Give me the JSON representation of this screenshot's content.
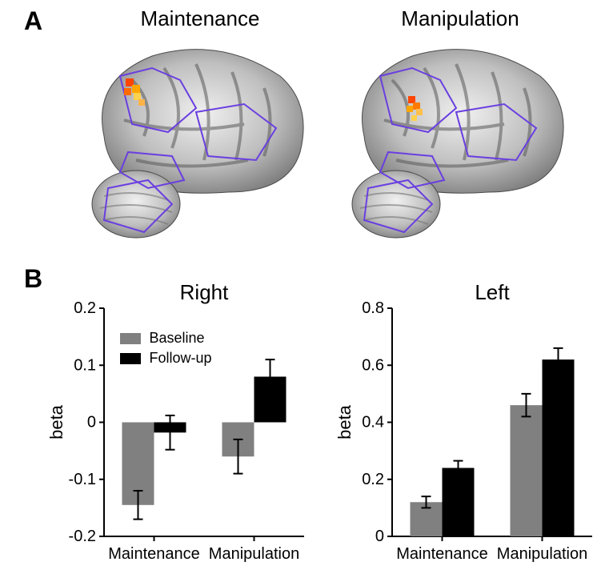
{
  "panelA": {
    "label": "A",
    "left_title": "Maintenance",
    "right_title": "Manipulation"
  },
  "panelB": {
    "label": "B",
    "charts": {
      "right": {
        "title": "Right",
        "ylabel": "beta",
        "ylim": [
          -0.2,
          0.2
        ],
        "yticks": [
          -0.2,
          -0.1,
          0,
          0.1,
          0.2
        ],
        "categories": [
          "Maintenance",
          "Manipulation"
        ],
        "series": [
          {
            "name": "Baseline",
            "color": "#808080",
            "values": [
              -0.145,
              -0.06
            ],
            "err": [
              0.025,
              0.03
            ]
          },
          {
            "name": "Follow-up",
            "color": "#000000",
            "values": [
              -0.018,
              0.08
            ],
            "err": [
              0.03,
              0.03
            ]
          }
        ],
        "bar_width": 0.32,
        "axis_color": "#000000",
        "background": "#ffffff"
      },
      "left": {
        "title": "Left",
        "ylabel": "beta",
        "ylim": [
          0,
          0.8
        ],
        "yticks": [
          0,
          0.2,
          0.4,
          0.6,
          0.8
        ],
        "categories": [
          "Maintenance",
          "Manipulation"
        ],
        "series": [
          {
            "name": "Baseline",
            "color": "#808080",
            "values": [
              0.12,
              0.46
            ],
            "err": [
              0.02,
              0.04
            ]
          },
          {
            "name": "Follow-up",
            "color": "#000000",
            "values": [
              0.24,
              0.62
            ],
            "err": [
              0.025,
              0.04
            ]
          }
        ],
        "bar_width": 0.32,
        "axis_color": "#000000",
        "background": "#ffffff"
      }
    },
    "legend": {
      "items": [
        {
          "label": "Baseline",
          "color": "#808080"
        },
        {
          "label": "Follow-up",
          "color": "#000000"
        }
      ]
    },
    "xlabel_fontsize": 20,
    "title_fontsize": 26
  },
  "brain_style": {
    "roi_outline_color": "#6a3fe0",
    "activation_colors": [
      "#ff4500",
      "#ffa500",
      "#ffd24d"
    ]
  }
}
